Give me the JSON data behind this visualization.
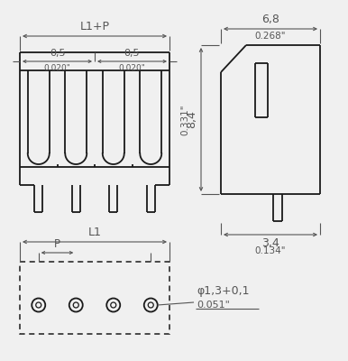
{
  "bg_color": "#f0f0f0",
  "line_color": "#1a1a1a",
  "dim_color": "#555555",
  "annotations": {
    "L1_P": "L1+P",
    "dim_05_1": "0,5",
    "dim_020_1": "0.020\"",
    "dim_05_2": "0,5",
    "dim_020_2": "0.020\"",
    "dim_68": "6,8",
    "dim_0268": "0.268\"",
    "dim_84": "8,4",
    "dim_0331": "0.331\"",
    "dim_34": "3,4",
    "dim_0134": "0.134\"",
    "L1": "L1",
    "P": "P",
    "phi": "φ1,3+0,1",
    "dim_0051": "0.051\""
  }
}
